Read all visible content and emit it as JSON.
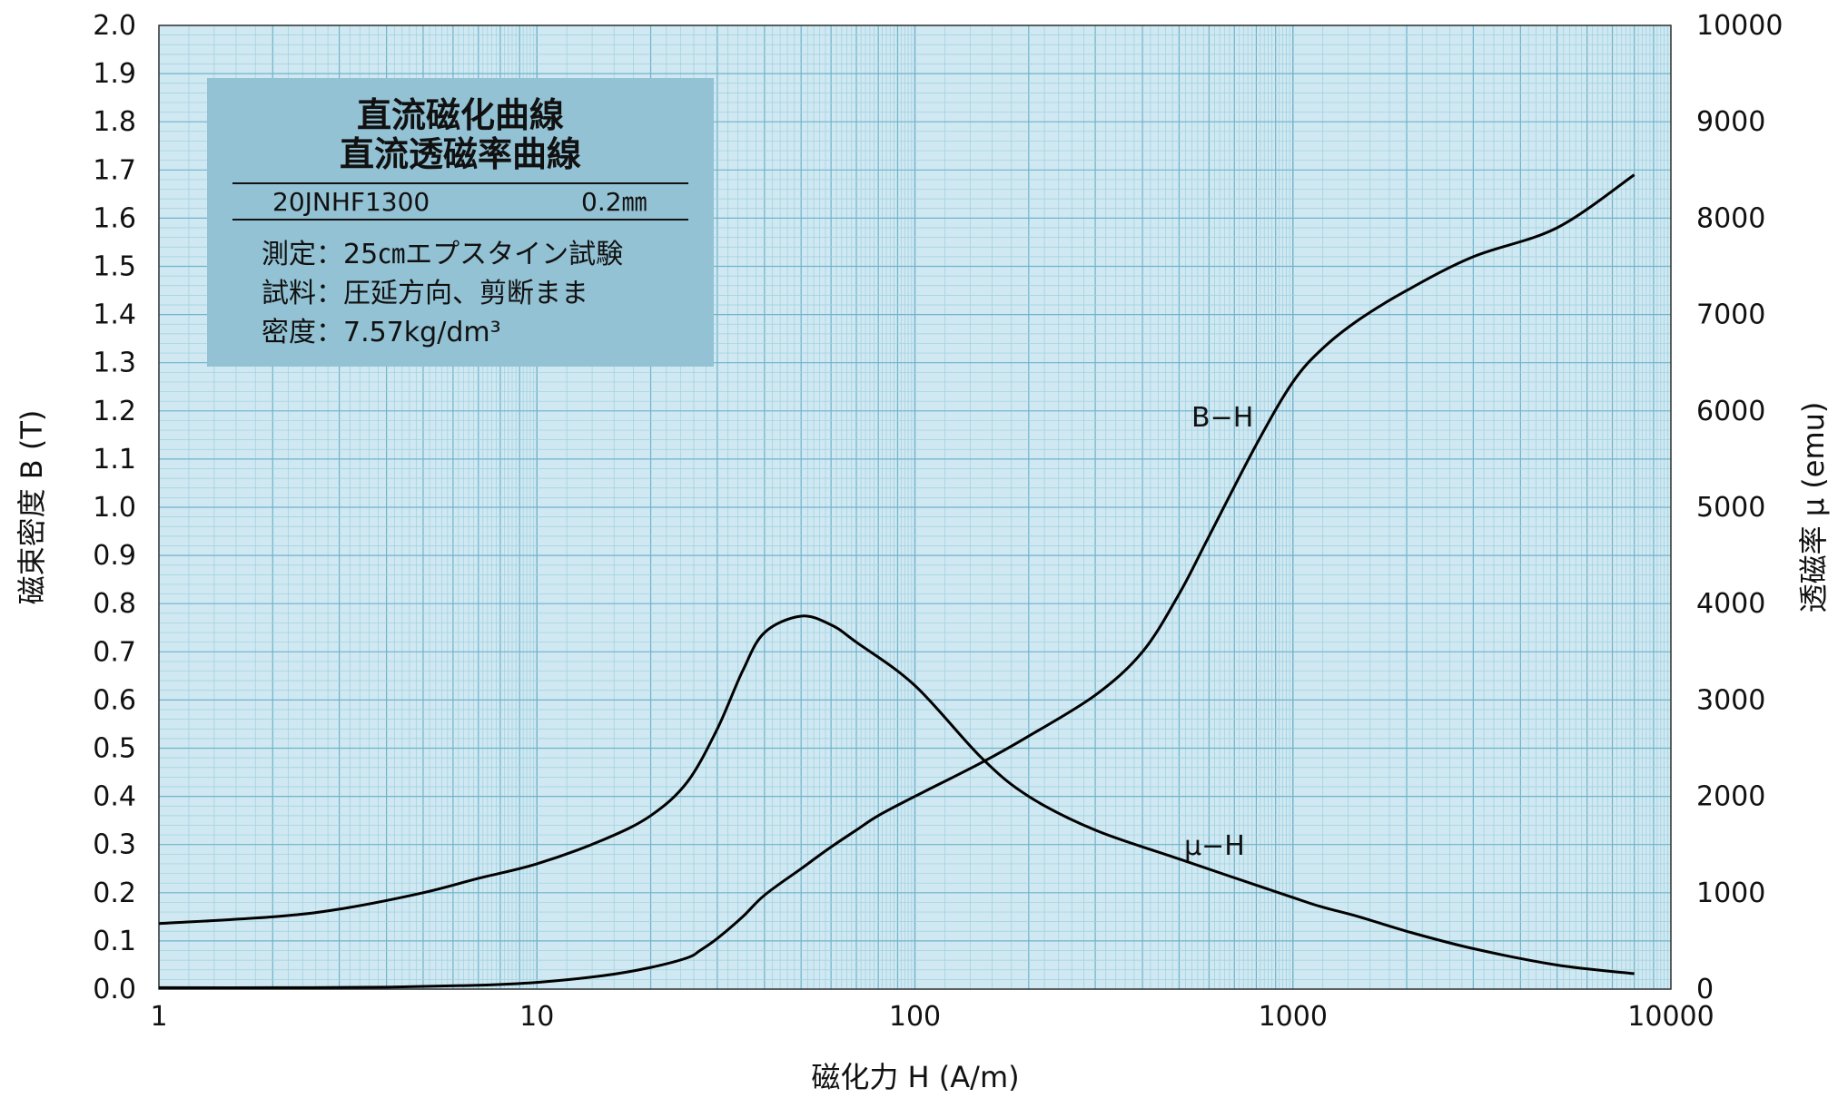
{
  "chart_data": {
    "type": "line",
    "x_scale": "log",
    "xlim": [
      1,
      10000
    ],
    "ylim_left": [
      0,
      2.0
    ],
    "ylim_right": [
      0,
      10000
    ],
    "grid": true,
    "xlabel": "磁化力 H (A/m)",
    "ylabel_left": "磁束密度 B (T)",
    "ylabel_right": "透磁率 μ (emu)",
    "x_ticks": [
      "1",
      "10",
      "100",
      "1000",
      "10000"
    ],
    "y_left_ticks": [
      "0.0",
      "0.1",
      "0.2",
      "0.3",
      "0.4",
      "0.5",
      "0.6",
      "0.7",
      "0.8",
      "0.9",
      "1.0",
      "1.1",
      "1.2",
      "1.3",
      "1.4",
      "1.5",
      "1.6",
      "1.7",
      "1.8",
      "1.9",
      "2.0"
    ],
    "y_right_ticks": [
      "0",
      "1000",
      "2000",
      "3000",
      "4000",
      "5000",
      "6000",
      "7000",
      "8000",
      "9000",
      "10000"
    ],
    "series": [
      {
        "name": "B−H",
        "axis": "left",
        "points": [
          [
            1,
            0.003
          ],
          [
            2,
            0.003
          ],
          [
            4,
            0.004
          ],
          [
            7,
            0.008
          ],
          [
            10,
            0.014
          ],
          [
            15,
            0.028
          ],
          [
            20,
            0.045
          ],
          [
            25,
            0.065
          ],
          [
            27,
            0.08
          ],
          [
            30,
            0.105
          ],
          [
            35,
            0.15
          ],
          [
            40,
            0.195
          ],
          [
            50,
            0.25
          ],
          [
            60,
            0.295
          ],
          [
            70,
            0.33
          ],
          [
            80,
            0.36
          ],
          [
            100,
            0.4
          ],
          [
            150,
            0.47
          ],
          [
            200,
            0.525
          ],
          [
            300,
            0.61
          ],
          [
            400,
            0.7
          ],
          [
            500,
            0.82
          ],
          [
            600,
            0.94
          ],
          [
            800,
            1.13
          ],
          [
            1000,
            1.26
          ],
          [
            1200,
            1.33
          ],
          [
            1500,
            1.39
          ],
          [
            2000,
            1.45
          ],
          [
            3000,
            1.52
          ],
          [
            5000,
            1.58
          ],
          [
            8000,
            1.69
          ]
        ]
      },
      {
        "name": "μ−H",
        "axis": "right",
        "points": [
          [
            1,
            680
          ],
          [
            2,
            750
          ],
          [
            3,
            830
          ],
          [
            5,
            1000
          ],
          [
            7,
            1150
          ],
          [
            10,
            1300
          ],
          [
            15,
            1550
          ],
          [
            20,
            1800
          ],
          [
            25,
            2150
          ],
          [
            30,
            2700
          ],
          [
            35,
            3300
          ],
          [
            40,
            3700
          ],
          [
            50,
            3870
          ],
          [
            60,
            3780
          ],
          [
            70,
            3600
          ],
          [
            100,
            3150
          ],
          [
            150,
            2400
          ],
          [
            200,
            2000
          ],
          [
            300,
            1650
          ],
          [
            500,
            1350
          ],
          [
            1000,
            950
          ],
          [
            1200,
            850
          ],
          [
            1500,
            750
          ],
          [
            2000,
            600
          ],
          [
            3000,
            420
          ],
          [
            5000,
            250
          ],
          [
            8000,
            160
          ]
        ]
      }
    ],
    "annotations": [
      {
        "text": "B−H",
        "x": 750,
        "y": 1.2
      },
      {
        "text": "μ−H",
        "x": 700,
        "y": 0.3
      }
    ]
  },
  "info_box": {
    "title_line1": "直流磁化曲線",
    "title_line2": "直流透磁率曲線",
    "grade": "20JNHF1300",
    "thickness": "0.2㎜",
    "line_measure": "測定：25㎝エプスタイン試験",
    "line_sample": "試料：圧延方向、剪断まま",
    "line_density": "密度：7.57kg/dm³",
    "fill_color": "#93c2d4"
  },
  "colors": {
    "grid_background": "#cfe8f1",
    "grid_minor": "#9fd0e0",
    "grid_major": "#6fb3cb",
    "curve": "#000000"
  }
}
